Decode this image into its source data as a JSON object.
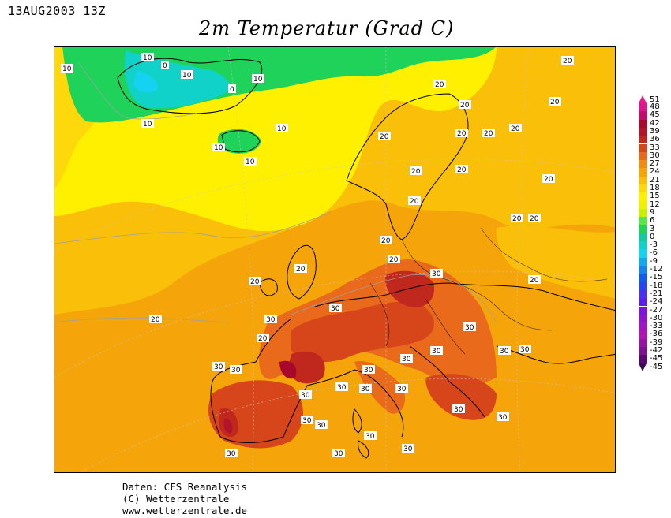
{
  "header": {
    "timestamp": "13AUG2003 13Z",
    "title": "2m Temperatur (Grad C)"
  },
  "credits": {
    "line1": "Daten: CFS Reanalysis",
    "line2": "(C) Wetterzentrale",
    "line3": "www.wetterzentrale.de"
  },
  "legend": {
    "top_arrow": "51",
    "bottom_arrow": "-45",
    "entries": [
      {
        "label": "48",
        "color": "#e0148c"
      },
      {
        "label": "45",
        "color": "#c80a6a"
      },
      {
        "label": "42",
        "color": "#a8082c"
      },
      {
        "label": "39",
        "color": "#b4142a"
      },
      {
        "label": "36",
        "color": "#c0281e"
      },
      {
        "label": "33",
        "color": "#d6461a"
      },
      {
        "label": "30",
        "color": "#e86a1a"
      },
      {
        "label": "27",
        "color": "#f08c10"
      },
      {
        "label": "24",
        "color": "#f5a50a"
      },
      {
        "label": "21",
        "color": "#fabf08"
      },
      {
        "label": "18",
        "color": "#fdd80a"
      },
      {
        "label": "15",
        "color": "#fff000"
      },
      {
        "label": "12",
        "color": "#f0f000"
      },
      {
        "label": "9",
        "color": "#c8f000"
      },
      {
        "label": "6",
        "color": "#5ae646"
      },
      {
        "label": "3",
        "color": "#1ed25a"
      },
      {
        "label": "0",
        "color": "#14c8a0"
      },
      {
        "label": "-3",
        "color": "#10d2c8"
      },
      {
        "label": "-6",
        "color": "#14d2f0"
      },
      {
        "label": "-9",
        "color": "#14a8f0"
      },
      {
        "label": "-12",
        "color": "#1482f0"
      },
      {
        "label": "-15",
        "color": "#145af0"
      },
      {
        "label": "-18",
        "color": "#2846f0"
      },
      {
        "label": "-21",
        "color": "#4632f0"
      },
      {
        "label": "-24",
        "color": "#5a1ef0"
      },
      {
        "label": "-27",
        "color": "#7814e6"
      },
      {
        "label": "-30",
        "color": "#8c14d2"
      },
      {
        "label": "-33",
        "color": "#a014c8"
      },
      {
        "label": "-36",
        "color": "#b414b4"
      },
      {
        "label": "-39",
        "color": "#9614a0"
      },
      {
        "label": "-42",
        "color": "#78148c"
      },
      {
        "label": "-45",
        "color": "#5a0a6e"
      }
    ]
  },
  "map": {
    "isoline_labels": [
      "10",
      "10",
      "0",
      "10",
      "0",
      "10",
      "10",
      "10",
      "10",
      "10",
      "20",
      "20",
      "20",
      "20",
      "20",
      "20",
      "20",
      "20",
      "20",
      "20",
      "20",
      "20",
      "20",
      "20",
      "20",
      "20",
      "20",
      "20",
      "20",
      "20",
      "20",
      "20",
      "30",
      "30",
      "30",
      "30",
      "30",
      "30",
      "30",
      "30",
      "30",
      "30",
      "30",
      "30",
      "30",
      "30",
      "30",
      "30",
      "30",
      "30",
      "30",
      "30",
      "30",
      "30",
      "30"
    ]
  }
}
